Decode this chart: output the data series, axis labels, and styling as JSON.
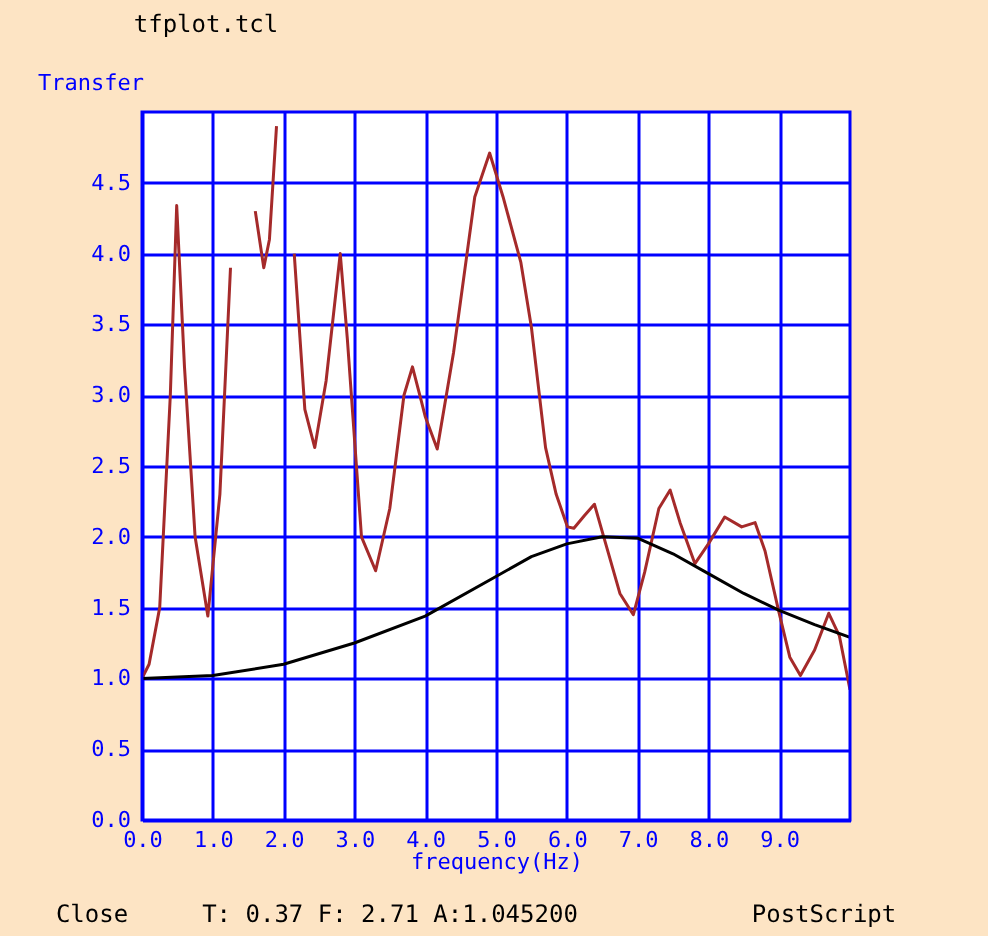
{
  "chart_data": {
    "type": "line",
    "xlabel": "frequency(Hz)",
    "ylabel": "Transfer",
    "xlim": [
      0,
      10
    ],
    "ylim": [
      0,
      5
    ],
    "xticks": [
      {
        "value": 0,
        "label": "0.0"
      },
      {
        "value": 1,
        "label": "1.0"
      },
      {
        "value": 2,
        "label": "2.0"
      },
      {
        "value": 3,
        "label": "3.0"
      },
      {
        "value": 4,
        "label": "4.0"
      },
      {
        "value": 5,
        "label": "5.0"
      },
      {
        "value": 6,
        "label": "6.0"
      },
      {
        "value": 7,
        "label": "7.0"
      },
      {
        "value": 8,
        "label": "8.0"
      },
      {
        "value": 9,
        "label": "9.0"
      }
    ],
    "yticks": [
      {
        "value": 0,
        "label": "0.0"
      },
      {
        "value": 0.5,
        "label": "0.5"
      },
      {
        "value": 1,
        "label": "1.0"
      },
      {
        "value": 1.5,
        "label": "1.5"
      },
      {
        "value": 2,
        "label": "2.0"
      },
      {
        "value": 2.5,
        "label": "2.5"
      },
      {
        "value": 3,
        "label": "3.0"
      },
      {
        "value": 3.5,
        "label": "3.5"
      },
      {
        "value": 4,
        "label": "4.0"
      },
      {
        "value": 4.5,
        "label": "4.5"
      }
    ],
    "grid": true,
    "series": [
      {
        "color": "#a52a2a",
        "x": [
          0,
          0.1,
          0.25,
          0.4,
          0.49,
          0.6,
          0.75,
          0.93,
          1.1,
          1.25,
          1.36,
          1.5,
          1.6,
          1.72,
          1.8,
          1.9,
          1.96,
          2.05,
          2.15,
          2.3,
          2.44,
          2.6,
          2.8,
          2.9,
          3.0,
          3.1,
          3.3,
          3.5,
          3.7,
          3.82,
          3.95,
          4.0,
          4.17,
          4.4,
          4.7,
          4.91,
          5.1,
          5.35,
          5.5,
          5.7,
          5.85,
          6.01,
          6.1,
          6.25,
          6.39,
          6.55,
          6.75,
          6.94,
          7.1,
          7.3,
          7.46,
          7.6,
          7.81,
          8.0,
          8.23,
          8.47,
          8.66,
          8.8,
          8.99,
          9.15,
          9.3,
          9.5,
          9.7,
          9.85,
          10
        ],
        "values": [
          1.0,
          1.1,
          1.5,
          3.0,
          4.34,
          3.2,
          2.0,
          1.44,
          2.3,
          3.9,
          null,
          null,
          4.3,
          3.9,
          4.1,
          4.9,
          null,
          null,
          4.0,
          2.9,
          2.63,
          3.1,
          4.0,
          3.4,
          2.7,
          2.0,
          1.76,
          2.2,
          3.0,
          3.2,
          2.95,
          2.85,
          2.62,
          3.3,
          4.4,
          4.71,
          4.4,
          3.94,
          3.48,
          2.63,
          2.3,
          2.07,
          2.06,
          2.15,
          2.23,
          1.95,
          1.6,
          1.45,
          1.75,
          2.2,
          2.33,
          2.1,
          1.81,
          1.95,
          2.14,
          2.07,
          2.1,
          1.9,
          1.48,
          1.15,
          1.02,
          1.2,
          1.46,
          1.3,
          0.92
        ]
      },
      {
        "color": "#000000",
        "x": [
          0,
          1,
          2,
          3,
          4,
          5,
          5.5,
          6,
          6.5,
          7,
          7.5,
          8,
          8.5,
          9,
          9.5,
          10
        ],
        "values": [
          1.0,
          1.02,
          1.1,
          1.25,
          1.44,
          1.72,
          1.86,
          1.95,
          2.0,
          1.99,
          1.88,
          1.74,
          1.6,
          1.48,
          1.38,
          1.29
        ]
      }
    ],
    "annotations": [
      "tfplot.tcl",
      "Close",
      "T: 0.37 F: 2.71 A:1.045200",
      "PostScript"
    ]
  }
}
